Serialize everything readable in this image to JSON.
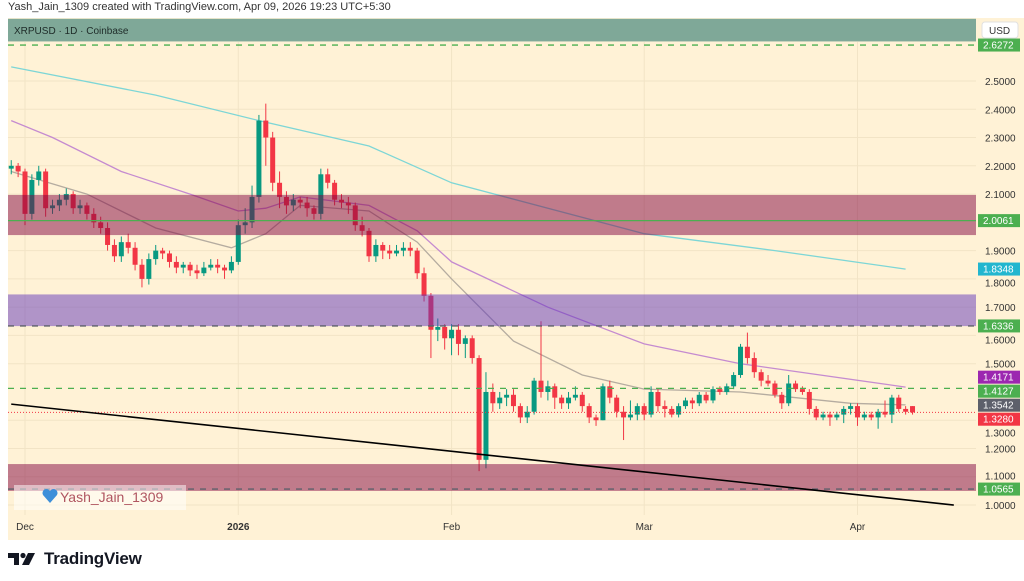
{
  "header": {
    "attribution": "Yash_Jain_1309 created with TradingView.com, Apr 09, 2026 19:23 UTC+5:30"
  },
  "symbol_line": "XRPUSD · 1D · Coinbase",
  "currency_button": "USD",
  "watermark": {
    "text": "Yash_Jain_1309",
    "icon": "blue-heart-icon"
  },
  "logo": {
    "text": "TradingView",
    "icon": "tradingview-logo-icon"
  },
  "colors": {
    "up": "#089981",
    "down": "#f23645",
    "background": "#fff2d6",
    "ma_cyan": "#7dd6d6",
    "ma_purple": "#c58bd0",
    "ma_gray": "#b5aca0"
  },
  "chart_data": {
    "type": "candlestick",
    "title": "XRPUSD · 1D · Coinbase",
    "ylim": [
      0.96,
      2.72
    ],
    "grid": true,
    "y_ticks": [
      "2.5000",
      "2.4000",
      "2.3000",
      "2.2000",
      "2.1000",
      "1.9000",
      "1.8000",
      "1.7000",
      "1.6000",
      "1.5000",
      "1.3000",
      "1.2000",
      "1.1000",
      "1.0000"
    ],
    "x_ticks": [
      {
        "date": "2025-12-01",
        "label": "Dec"
      },
      {
        "date": "2026-01-01",
        "label": "2026"
      },
      {
        "date": "2026-02-01",
        "label": "Feb"
      },
      {
        "date": "2026-03-01",
        "label": "Mar"
      },
      {
        "date": "2026-04-01",
        "label": "Apr"
      }
    ],
    "candles_columns": [
      "date",
      "open",
      "high",
      "low",
      "close"
    ],
    "candles": [
      [
        "2025-11-29",
        2.19,
        2.22,
        2.17,
        2.2
      ],
      [
        "2025-11-30",
        2.2,
        2.21,
        2.16,
        2.18
      ],
      [
        "2025-12-01",
        2.18,
        2.19,
        1.99,
        2.03
      ],
      [
        "2025-12-02",
        2.03,
        2.17,
        2.01,
        2.15
      ],
      [
        "2025-12-03",
        2.15,
        2.2,
        2.13,
        2.18
      ],
      [
        "2025-12-04",
        2.18,
        2.19,
        2.02,
        2.05
      ],
      [
        "2025-12-05",
        2.05,
        2.08,
        2.03,
        2.06
      ],
      [
        "2025-12-06",
        2.06,
        2.1,
        2.04,
        2.08
      ],
      [
        "2025-12-07",
        2.08,
        2.12,
        2.06,
        2.1
      ],
      [
        "2025-12-08",
        2.1,
        2.11,
        2.03,
        2.05
      ],
      [
        "2025-12-09",
        2.05,
        2.08,
        2.03,
        2.06
      ],
      [
        "2025-12-10",
        2.06,
        2.07,
        2.01,
        2.03
      ],
      [
        "2025-12-11",
        2.03,
        2.05,
        1.98,
        2.0
      ],
      [
        "2025-12-12",
        2.0,
        2.02,
        1.96,
        1.98
      ],
      [
        "2025-12-13",
        1.98,
        2.0,
        1.9,
        1.92
      ],
      [
        "2025-12-14",
        1.92,
        1.94,
        1.86,
        1.88
      ],
      [
        "2025-12-15",
        1.88,
        1.95,
        1.86,
        1.93
      ],
      [
        "2025-12-16",
        1.93,
        1.96,
        1.89,
        1.91
      ],
      [
        "2025-12-17",
        1.91,
        1.93,
        1.83,
        1.85
      ],
      [
        "2025-12-18",
        1.85,
        1.87,
        1.77,
        1.8
      ],
      [
        "2025-12-19",
        1.8,
        1.89,
        1.78,
        1.87
      ],
      [
        "2025-12-20",
        1.87,
        1.92,
        1.85,
        1.9
      ],
      [
        "2025-12-21",
        1.9,
        1.91,
        1.87,
        1.89
      ],
      [
        "2025-12-22",
        1.89,
        1.9,
        1.84,
        1.86
      ],
      [
        "2025-12-23",
        1.86,
        1.88,
        1.82,
        1.84
      ],
      [
        "2025-12-24",
        1.84,
        1.86,
        1.82,
        1.85
      ],
      [
        "2025-12-25",
        1.85,
        1.86,
        1.81,
        1.83
      ],
      [
        "2025-12-26",
        1.83,
        1.85,
        1.8,
        1.82
      ],
      [
        "2025-12-27",
        1.82,
        1.86,
        1.81,
        1.84
      ],
      [
        "2025-12-28",
        1.84,
        1.87,
        1.83,
        1.85
      ],
      [
        "2025-12-29",
        1.85,
        1.87,
        1.82,
        1.84
      ],
      [
        "2025-12-30",
        1.84,
        1.85,
        1.8,
        1.83
      ],
      [
        "2025-12-31",
        1.83,
        1.88,
        1.82,
        1.86
      ],
      [
        "2026-01-01",
        1.86,
        2.01,
        1.85,
        1.99
      ],
      [
        "2026-01-02",
        1.99,
        2.05,
        1.96,
        2.0
      ],
      [
        "2026-01-03",
        2.0,
        2.13,
        1.98,
        2.09
      ],
      [
        "2026-01-04",
        2.09,
        2.38,
        2.07,
        2.36
      ],
      [
        "2026-01-05",
        2.36,
        2.42,
        2.2,
        2.3
      ],
      [
        "2026-01-06",
        2.3,
        2.32,
        2.11,
        2.14
      ],
      [
        "2026-01-07",
        2.14,
        2.18,
        2.05,
        2.09
      ],
      [
        "2026-01-08",
        2.09,
        2.11,
        2.03,
        2.06
      ],
      [
        "2026-01-09",
        2.06,
        2.1,
        2.04,
        2.08
      ],
      [
        "2026-01-10",
        2.08,
        2.09,
        2.05,
        2.07
      ],
      [
        "2026-01-11",
        2.07,
        2.09,
        2.02,
        2.05
      ],
      [
        "2026-01-12",
        2.05,
        2.06,
        2.01,
        2.03
      ],
      [
        "2026-01-13",
        2.03,
        2.19,
        2.01,
        2.17
      ],
      [
        "2026-01-14",
        2.17,
        2.19,
        2.12,
        2.14
      ],
      [
        "2026-01-15",
        2.14,
        2.15,
        2.06,
        2.08
      ],
      [
        "2026-01-16",
        2.08,
        2.1,
        2.05,
        2.07
      ],
      [
        "2026-01-17",
        2.07,
        2.09,
        2.03,
        2.06
      ],
      [
        "2026-01-18",
        2.06,
        2.07,
        1.97,
        1.99
      ],
      [
        "2026-01-19",
        1.99,
        2.02,
        1.95,
        1.97
      ],
      [
        "2026-01-20",
        1.97,
        1.98,
        1.86,
        1.88
      ],
      [
        "2026-01-21",
        1.88,
        1.94,
        1.86,
        1.92
      ],
      [
        "2026-01-22",
        1.92,
        1.93,
        1.87,
        1.9
      ],
      [
        "2026-01-23",
        1.9,
        1.92,
        1.87,
        1.89
      ],
      [
        "2026-01-24",
        1.89,
        1.92,
        1.88,
        1.9
      ],
      [
        "2026-01-25",
        1.9,
        1.93,
        1.88,
        1.91
      ],
      [
        "2026-01-26",
        1.91,
        1.93,
        1.88,
        1.9
      ],
      [
        "2026-01-27",
        1.9,
        1.91,
        1.8,
        1.82
      ],
      [
        "2026-01-28",
        1.82,
        1.84,
        1.72,
        1.74
      ],
      [
        "2026-01-29",
        1.74,
        1.75,
        1.52,
        1.62
      ],
      [
        "2026-01-30",
        1.62,
        1.66,
        1.58,
        1.63
      ],
      [
        "2026-01-31",
        1.63,
        1.64,
        1.55,
        1.59
      ],
      [
        "2026-02-01",
        1.59,
        1.64,
        1.53,
        1.62
      ],
      [
        "2026-02-02",
        1.62,
        1.64,
        1.53,
        1.57
      ],
      [
        "2026-02-03",
        1.57,
        1.6,
        1.52,
        1.59
      ],
      [
        "2026-02-04",
        1.59,
        1.6,
        1.5,
        1.52
      ],
      [
        "2026-02-05",
        1.52,
        1.53,
        1.12,
        1.16
      ],
      [
        "2026-02-06",
        1.16,
        1.47,
        1.13,
        1.4
      ],
      [
        "2026-02-07",
        1.4,
        1.43,
        1.33,
        1.36
      ],
      [
        "2026-02-08",
        1.36,
        1.4,
        1.34,
        1.38
      ],
      [
        "2026-02-09",
        1.38,
        1.41,
        1.35,
        1.39
      ],
      [
        "2026-02-10",
        1.39,
        1.41,
        1.33,
        1.35
      ],
      [
        "2026-02-11",
        1.35,
        1.36,
        1.29,
        1.31
      ],
      [
        "2026-02-12",
        1.31,
        1.35,
        1.29,
        1.33
      ],
      [
        "2026-02-13",
        1.33,
        1.45,
        1.32,
        1.44
      ],
      [
        "2026-02-14",
        1.44,
        1.65,
        1.38,
        1.4
      ],
      [
        "2026-02-15",
        1.4,
        1.44,
        1.37,
        1.42
      ],
      [
        "2026-02-16",
        1.42,
        1.43,
        1.34,
        1.38
      ],
      [
        "2026-02-17",
        1.38,
        1.39,
        1.34,
        1.36
      ],
      [
        "2026-02-18",
        1.36,
        1.4,
        1.34,
        1.38
      ],
      [
        "2026-02-19",
        1.38,
        1.42,
        1.37,
        1.39
      ],
      [
        "2026-02-20",
        1.39,
        1.4,
        1.33,
        1.35
      ],
      [
        "2026-02-21",
        1.35,
        1.36,
        1.29,
        1.31
      ],
      [
        "2026-02-22",
        1.31,
        1.32,
        1.28,
        1.3
      ],
      [
        "2026-02-23",
        1.3,
        1.43,
        1.3,
        1.42
      ],
      [
        "2026-02-24",
        1.42,
        1.44,
        1.36,
        1.38
      ],
      [
        "2026-02-25",
        1.38,
        1.39,
        1.31,
        1.33
      ],
      [
        "2026-02-26",
        1.33,
        1.35,
        1.23,
        1.31
      ],
      [
        "2026-02-27",
        1.31,
        1.37,
        1.3,
        1.32
      ],
      [
        "2026-02-28",
        1.32,
        1.36,
        1.3,
        1.35
      ],
      [
        "2026-03-01",
        1.35,
        1.36,
        1.3,
        1.32
      ],
      [
        "2026-03-02",
        1.32,
        1.42,
        1.31,
        1.4
      ],
      [
        "2026-03-03",
        1.4,
        1.41,
        1.33,
        1.35
      ],
      [
        "2026-03-04",
        1.35,
        1.37,
        1.31,
        1.34
      ],
      [
        "2026-03-05",
        1.34,
        1.35,
        1.31,
        1.32
      ],
      [
        "2026-03-06",
        1.32,
        1.36,
        1.31,
        1.35
      ],
      [
        "2026-03-07",
        1.35,
        1.38,
        1.34,
        1.37
      ],
      [
        "2026-03-08",
        1.37,
        1.38,
        1.34,
        1.36
      ],
      [
        "2026-03-09",
        1.36,
        1.4,
        1.35,
        1.39
      ],
      [
        "2026-03-10",
        1.39,
        1.4,
        1.36,
        1.37
      ],
      [
        "2026-03-11",
        1.37,
        1.42,
        1.36,
        1.41
      ],
      [
        "2026-03-12",
        1.41,
        1.42,
        1.39,
        1.4
      ],
      [
        "2026-03-13",
        1.4,
        1.43,
        1.39,
        1.42
      ],
      [
        "2026-03-14",
        1.42,
        1.47,
        1.41,
        1.46
      ],
      [
        "2026-03-15",
        1.46,
        1.57,
        1.45,
        1.56
      ],
      [
        "2026-03-16",
        1.56,
        1.61,
        1.5,
        1.52
      ],
      [
        "2026-03-17",
        1.52,
        1.54,
        1.45,
        1.47
      ],
      [
        "2026-03-18",
        1.47,
        1.48,
        1.42,
        1.44
      ],
      [
        "2026-03-19",
        1.44,
        1.46,
        1.42,
        1.43
      ],
      [
        "2026-03-20",
        1.43,
        1.44,
        1.38,
        1.39
      ],
      [
        "2026-03-21",
        1.39,
        1.4,
        1.34,
        1.36
      ],
      [
        "2026-03-22",
        1.36,
        1.46,
        1.35,
        1.43
      ],
      [
        "2026-03-23",
        1.43,
        1.44,
        1.4,
        1.41
      ],
      [
        "2026-03-24",
        1.41,
        1.42,
        1.39,
        1.4
      ],
      [
        "2026-03-25",
        1.4,
        1.41,
        1.32,
        1.34
      ],
      [
        "2026-03-26",
        1.34,
        1.35,
        1.3,
        1.31
      ],
      [
        "2026-03-27",
        1.31,
        1.33,
        1.3,
        1.32
      ],
      [
        "2026-03-28",
        1.32,
        1.33,
        1.28,
        1.31
      ],
      [
        "2026-03-29",
        1.31,
        1.33,
        1.3,
        1.32
      ],
      [
        "2026-03-30",
        1.32,
        1.35,
        1.29,
        1.34
      ],
      [
        "2026-03-31",
        1.34,
        1.36,
        1.32,
        1.35
      ],
      [
        "2026-04-01",
        1.35,
        1.36,
        1.28,
        1.31
      ],
      [
        "2026-04-02",
        1.31,
        1.33,
        1.3,
        1.32
      ],
      [
        "2026-04-03",
        1.32,
        1.33,
        1.3,
        1.31
      ],
      [
        "2026-04-04",
        1.31,
        1.34,
        1.27,
        1.33
      ],
      [
        "2026-04-05",
        1.33,
        1.37,
        1.31,
        1.32
      ],
      [
        "2026-04-06",
        1.32,
        1.39,
        1.29,
        1.38
      ],
      [
        "2026-04-07",
        1.38,
        1.39,
        1.33,
        1.34
      ],
      [
        "2026-04-08",
        1.34,
        1.35,
        1.32,
        1.33
      ],
      [
        "2026-04-09",
        1.35,
        1.35,
        1.32,
        1.328
      ]
    ],
    "moving_averages": [
      {
        "color": "#7dd6d6",
        "points": [
          [
            "2025-11-29",
            2.55
          ],
          [
            "2025-12-20",
            2.45
          ],
          [
            "2026-01-04",
            2.36
          ],
          [
            "2026-01-20",
            2.27
          ],
          [
            "2026-02-01",
            2.14
          ],
          [
            "2026-03-01",
            1.96
          ],
          [
            "2026-03-20",
            1.9
          ],
          [
            "2026-04-08",
            1.8348
          ]
        ]
      },
      {
        "color": "#c58bd0",
        "points": [
          [
            "2025-11-29",
            2.36
          ],
          [
            "2025-12-05",
            2.3
          ],
          [
            "2025-12-15",
            2.18
          ],
          [
            "2025-12-25",
            2.1
          ],
          [
            "2026-01-01",
            2.04
          ],
          [
            "2026-01-05",
            2.05
          ],
          [
            "2026-01-10",
            2.09
          ],
          [
            "2026-01-20",
            2.06
          ],
          [
            "2026-01-27",
            1.97
          ],
          [
            "2026-02-01",
            1.86
          ],
          [
            "2026-02-15",
            1.7
          ],
          [
            "2026-03-01",
            1.57
          ],
          [
            "2026-03-15",
            1.5
          ],
          [
            "2026-04-08",
            1.4171
          ]
        ]
      },
      {
        "color": "#b5aca0",
        "points": [
          [
            "2025-11-29",
            2.18
          ],
          [
            "2025-12-10",
            2.1
          ],
          [
            "2025-12-20",
            1.98
          ],
          [
            "2025-12-31",
            1.91
          ],
          [
            "2026-01-05",
            1.96
          ],
          [
            "2026-01-10",
            2.06
          ],
          [
            "2026-01-20",
            2.04
          ],
          [
            "2026-01-27",
            1.93
          ],
          [
            "2026-02-01",
            1.8
          ],
          [
            "2026-02-10",
            1.58
          ],
          [
            "2026-02-20",
            1.46
          ],
          [
            "2026-03-01",
            1.41
          ],
          [
            "2026-03-15",
            1.4
          ],
          [
            "2026-03-31",
            1.36
          ],
          [
            "2026-04-08",
            1.3542
          ]
        ]
      }
    ],
    "zones": [
      {
        "top": 2.72,
        "bottom": 2.64,
        "color": "#7fa898",
        "kind": "header"
      },
      {
        "top": 2.097,
        "bottom": 1.955,
        "color": "rgba(129,4,64,0.5)"
      },
      {
        "top": 1.745,
        "bottom": 1.633,
        "color": "rgba(97,54,186,0.5)"
      },
      {
        "top": 1.145,
        "bottom": 1.05,
        "color": "rgba(129,4,64,0.5)"
      }
    ],
    "horizontal_lines": [
      {
        "price": 2.6272,
        "color": "#4caf50",
        "style": "dashed"
      },
      {
        "price": 2.0061,
        "color": "#4caf50",
        "style": "solid"
      },
      {
        "price": 1.6336,
        "color": "#5d606b",
        "style": "dashed"
      },
      {
        "price": 1.4127,
        "color": "#4caf50",
        "style": "dashed"
      },
      {
        "price": 1.328,
        "color": "#f23645",
        "style": "dotted"
      },
      {
        "price": 1.0565,
        "color": "#5d606b",
        "style": "dashed"
      }
    ],
    "trendline": {
      "from": [
        "2025-11-29",
        1.357
      ],
      "to": [
        "2026-04-15",
        1.0
      ],
      "color": "#000000"
    },
    "price_badges": [
      {
        "label": "2.6272",
        "color": "#4caf50",
        "price": 2.6272
      },
      {
        "label": "2.0061",
        "color": "#4caf50",
        "price": 2.0061
      },
      {
        "label": "1.8348",
        "color": "#22b6cf",
        "price": 1.8348
      },
      {
        "label": "1.6336",
        "color": "#4caf50",
        "price": 1.6336
      },
      {
        "label": "1.4171",
        "color": "#9c27b0",
        "price": 1.4171
      },
      {
        "label": "1.4127",
        "color": "#4caf50",
        "price": 1.4127
      },
      {
        "label": "1.3542",
        "color": "#5d606b",
        "price": 1.3542
      },
      {
        "label": "1.3280",
        "color": "#f23645",
        "price": 1.328
      },
      {
        "label": "1.0565",
        "color": "#4caf50",
        "price": 1.0565
      }
    ]
  }
}
